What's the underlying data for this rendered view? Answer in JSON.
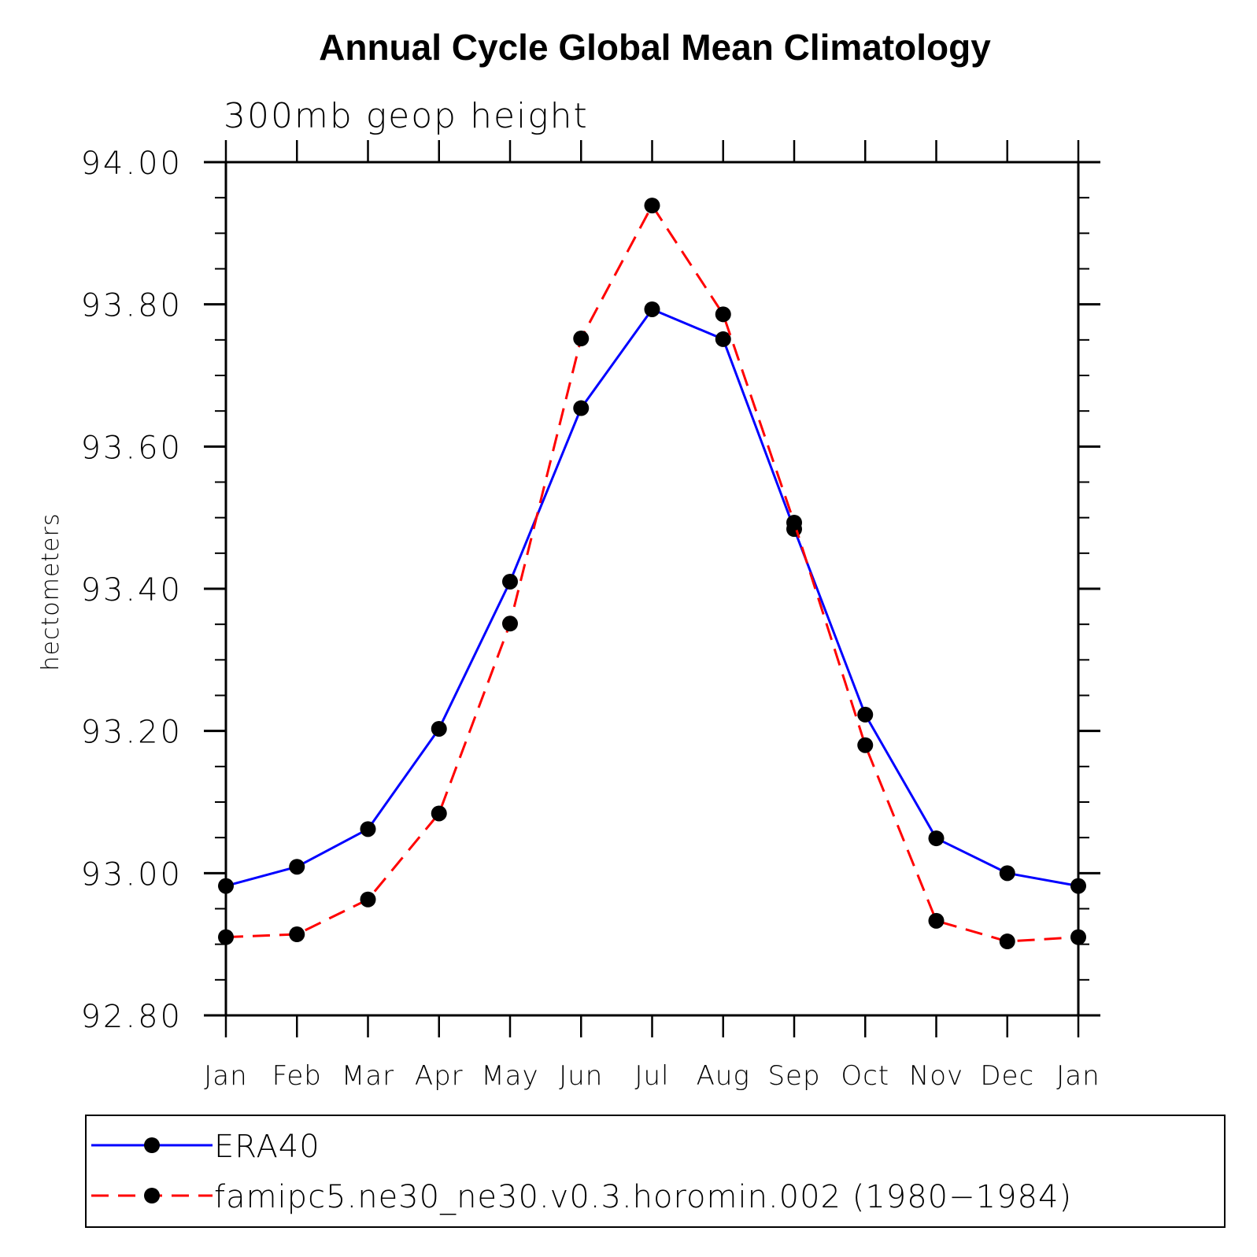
{
  "chart_data": {
    "type": "line",
    "title": "Annual Cycle Global Mean Climatology",
    "subtitle": "300mb geop height",
    "xlabel": "",
    "ylabel": "hectometers",
    "ylim": [
      92.8,
      94.0
    ],
    "yticks": [
      92.8,
      93.0,
      93.2,
      93.4,
      93.6,
      93.8,
      94.0
    ],
    "ytick_labels": [
      "92.80",
      "93.00",
      "93.20",
      "93.40",
      "93.60",
      "93.80",
      "94.00"
    ],
    "yminor_step": 0.05,
    "grid": false,
    "categories": [
      "Jan",
      "Feb",
      "Mar",
      "Apr",
      "May",
      "Jun",
      "Jul",
      "Aug",
      "Sep",
      "Oct",
      "Nov",
      "Dec",
      "Jan"
    ],
    "series": [
      {
        "name": "ERA40",
        "color": "#0000ff",
        "line_style": "solid",
        "marker": "filled-circle",
        "marker_color": "#000000",
        "values": [
          92.982,
          93.009,
          93.062,
          93.203,
          93.41,
          93.654,
          93.793,
          93.751,
          93.484,
          93.223,
          93.049,
          93.0,
          92.982
        ]
      },
      {
        "name": "famipc5.ne30_ne30.v0.3.horomin.002 (1980−1984)",
        "color": "#ff0000",
        "line_style": "dashed",
        "marker": "filled-circle",
        "marker_color": "#000000",
        "values": [
          92.91,
          92.914,
          92.963,
          93.084,
          93.351,
          93.752,
          93.939,
          93.786,
          93.493,
          93.18,
          92.933,
          92.904,
          92.91
        ]
      }
    ],
    "legend_position": "bottom"
  }
}
